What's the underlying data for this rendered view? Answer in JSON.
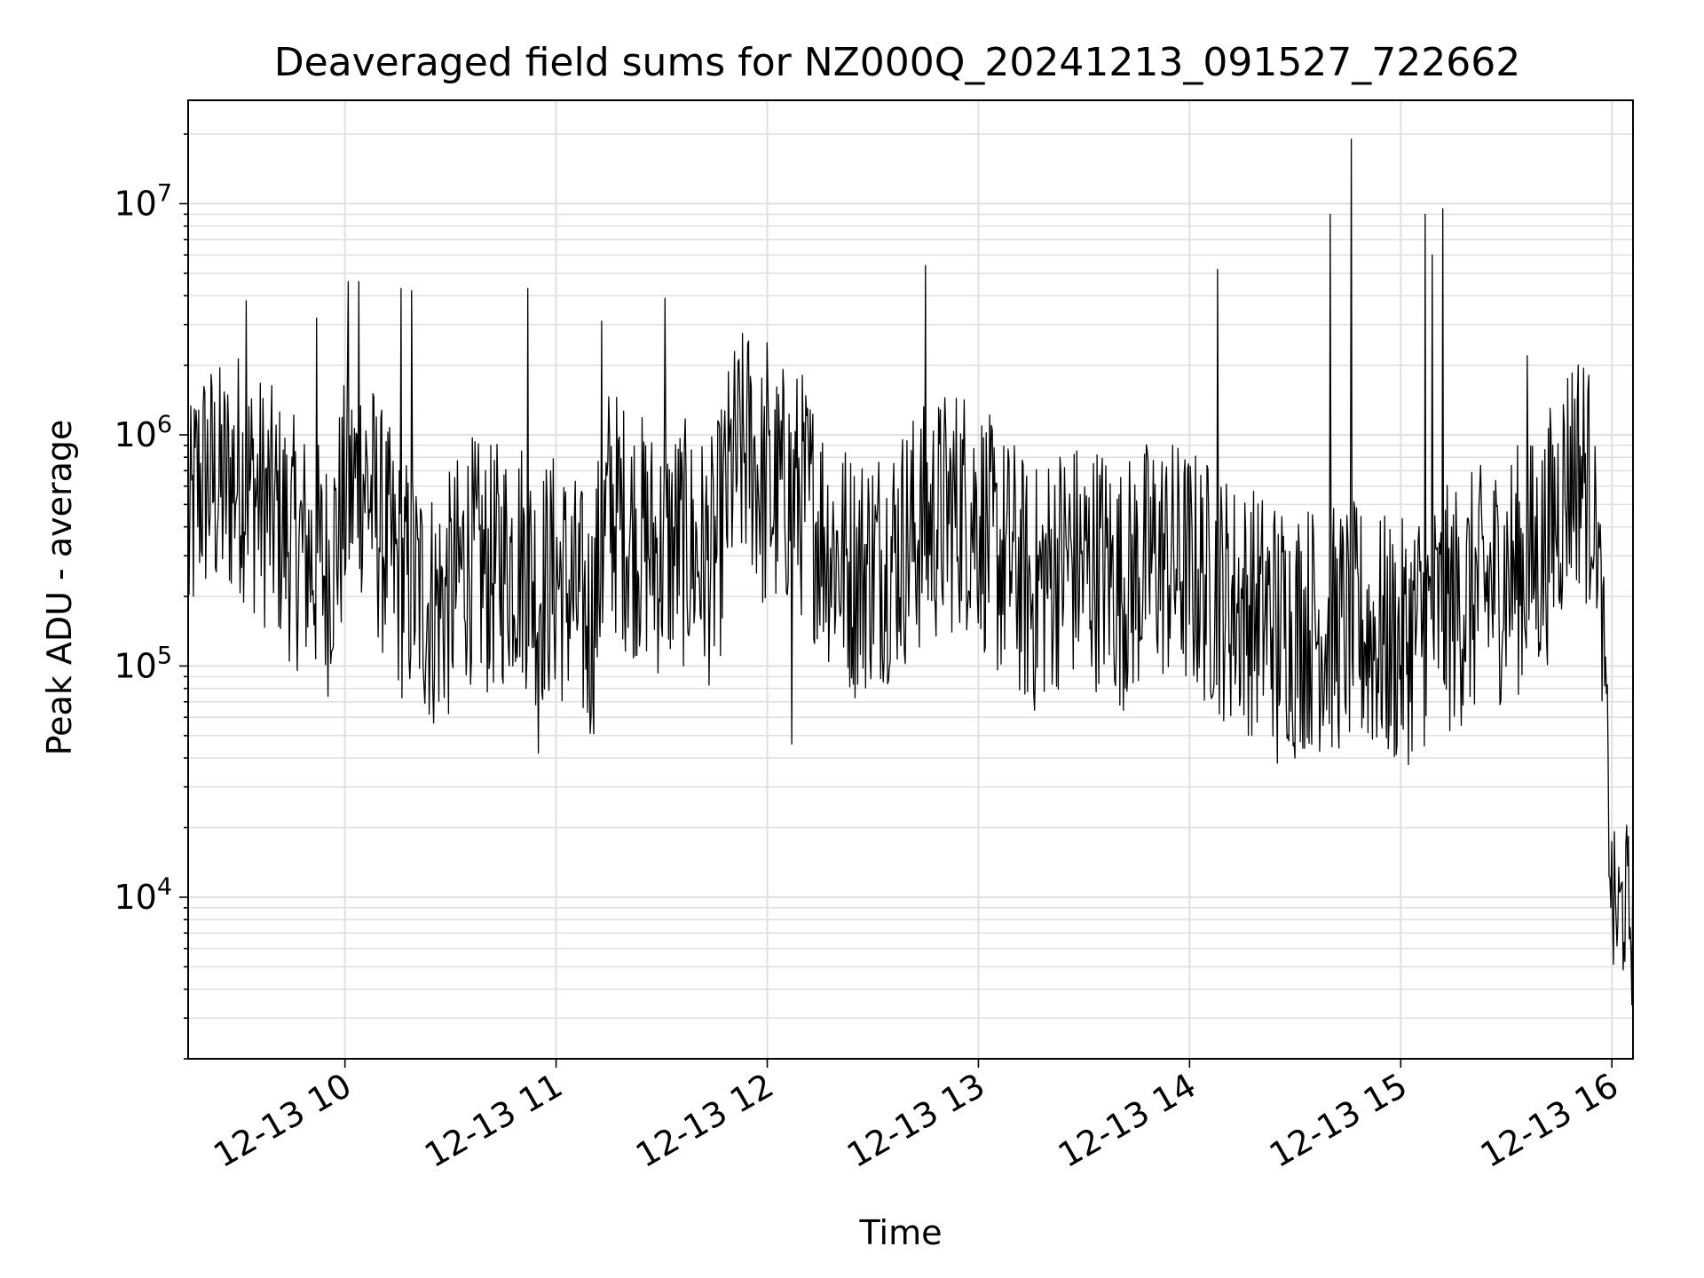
{
  "chart_data": {
    "type": "line",
    "title": "Deaveraged field sums for NZ000Q_20241213_091527_722662",
    "xlabel": "Time",
    "ylabel": "Peak ADU - average",
    "x_range": [
      "2024-12-13T09:15:27",
      "2024-12-13T16:06:00"
    ],
    "x_tick_labels": [
      "12-13 10",
      "12-13 11",
      "12-13 12",
      "12-13 13",
      "12-13 14",
      "12-13 15",
      "12-13 16"
    ],
    "x_tick_hours": [
      10,
      11,
      12,
      13,
      14,
      15,
      16
    ],
    "y_scale": "log",
    "ylim": [
      2000,
      28000000
    ],
    "y_tick_labels": [
      {
        "base": "10",
        "exp": "4",
        "value": 10000
      },
      {
        "base": "10",
        "exp": "5",
        "value": 100000
      },
      {
        "base": "10",
        "exp": "6",
        "value": 1000000
      },
      {
        "base": "10",
        "exp": "7",
        "value": 10000000
      }
    ],
    "grid": true,
    "line_color": "#000000",
    "series": [
      {
        "x": [
          "09:15",
          "09:18",
          "09:21",
          "09:25",
          "09:30",
          "09:35",
          "09:40",
          "09:45",
          "09:50",
          "09:55",
          "10:00",
          "10:05",
          "10:10",
          "10:15",
          "10:20",
          "10:25",
          "10:30",
          "10:35",
          "10:40",
          "10:45",
          "10:50",
          "10:55",
          "11:00",
          "11:05",
          "11:10",
          "11:15",
          "11:20",
          "11:25",
          "11:30",
          "11:35",
          "11:40",
          "11:45",
          "11:50",
          "11:55",
          "12:00",
          "12:05",
          "12:10",
          "12:15",
          "12:20",
          "12:25",
          "12:30",
          "12:35",
          "12:40",
          "12:45",
          "12:50",
          "12:55",
          "13:00",
          "13:05",
          "13:10",
          "13:15",
          "13:20",
          "13:25",
          "13:30",
          "13:35",
          "13:40",
          "13:45",
          "13:50",
          "13:55",
          "14:00",
          "14:05",
          "14:10",
          "14:15",
          "14:20",
          "14:25",
          "14:30",
          "14:35",
          "14:40",
          "14:45",
          "14:50",
          "14:55",
          "15:00",
          "15:05",
          "15:10",
          "15:15",
          "15:20",
          "15:25",
          "15:30",
          "15:35",
          "15:40",
          "15:45",
          "15:48",
          "15:50",
          "15:52",
          "15:54",
          "15:56",
          "15:58",
          "16:00",
          "16:02",
          "16:04",
          "16:06"
        ],
        "y": [
          280000,
          600000,
          650000,
          580000,
          700000,
          550000,
          450000,
          350000,
          300000,
          250000,
          500000,
          700000,
          400000,
          250000,
          220000,
          180000,
          200000,
          300000,
          250000,
          280000,
          300000,
          220000,
          250000,
          200000,
          150000,
          500000,
          400000,
          350000,
          300000,
          350000,
          300000,
          280000,
          700000,
          900000,
          500000,
          600000,
          550000,
          400000,
          300000,
          250000,
          280000,
          300000,
          350000,
          400000,
          450000,
          500000,
          450000,
          300000,
          280000,
          200000,
          250000,
          300000,
          260000,
          280000,
          220000,
          250000,
          300000,
          280000,
          260000,
          230000,
          200000,
          180000,
          170000,
          160000,
          150000,
          150000,
          140000,
          150000,
          140000,
          130000,
          120000,
          150000,
          160000,
          180000,
          200000,
          220000,
          250000,
          270000,
          300000,
          500000,
          700000,
          750000,
          700000,
          550000,
          350000,
          90000,
          9000,
          8000,
          10000,
          7000
        ]
      }
    ],
    "spikes": [
      {
        "x": "09:32",
        "y": 3800000
      },
      {
        "x": "09:52",
        "y": 3200000
      },
      {
        "x": "10:01",
        "y": 4600000
      },
      {
        "x": "10:04",
        "y": 4600000
      },
      {
        "x": "10:16",
        "y": 4300000
      },
      {
        "x": "10:19",
        "y": 4200000
      },
      {
        "x": "10:52",
        "y": 4300000
      },
      {
        "x": "11:13",
        "y": 3100000
      },
      {
        "x": "11:31",
        "y": 3900000
      },
      {
        "x": "12:00",
        "y": 2500000
      },
      {
        "x": "12:45",
        "y": 5400000
      },
      {
        "x": "14:08",
        "y": 5200000
      },
      {
        "x": "14:40",
        "y": 9000000
      },
      {
        "x": "14:46",
        "y": 19000000
      },
      {
        "x": "15:07",
        "y": 9000000
      },
      {
        "x": "15:09",
        "y": 6000000
      },
      {
        "x": "15:12",
        "y": 9500000
      },
      {
        "x": "15:36",
        "y": 2200000
      },
      {
        "x": "10:55",
        "y": 42000
      },
      {
        "x": "12:07",
        "y": 46000
      },
      {
        "x": "14:25",
        "y": 38000
      },
      {
        "x": "14:30",
        "y": 40000
      }
    ]
  }
}
